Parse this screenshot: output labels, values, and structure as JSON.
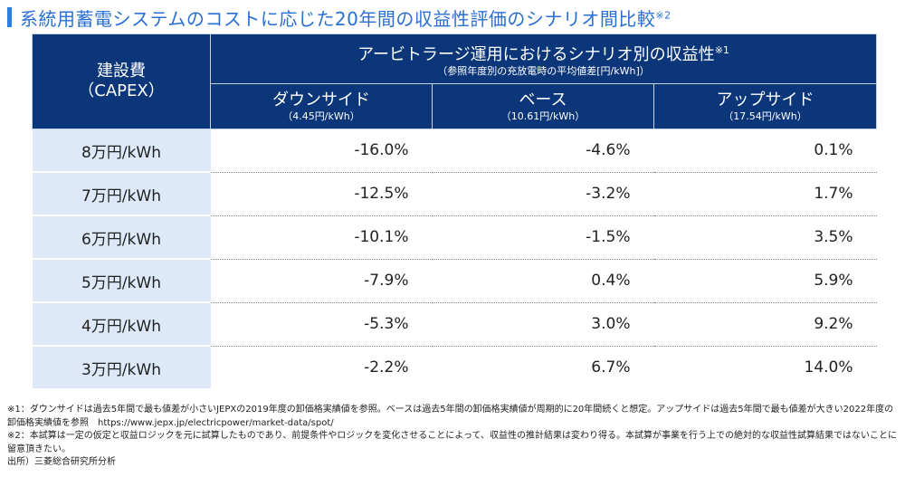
{
  "title": "系統用蓄電システムのコストに応じた20年間の収益性評価のシナリオ間比較",
  "title_note": "※2",
  "accent_color": "#0b3679",
  "header": {
    "capex_label": "建設費",
    "capex_sub": "（CAPEX）",
    "group_label": "アービトラージ運用におけるシナリオ別の収益性",
    "group_note": "※1",
    "group_sub": "（参照年度別の充放電時の平均値差[円/kWh]）",
    "scenarios": [
      {
        "name": "ダウンサイド",
        "sub": "（4.45円/kWh）"
      },
      {
        "name": "ベース",
        "sub": "（10.61円/kWh）"
      },
      {
        "name": "アップサイド",
        "sub": "（17.54円/kWh）"
      }
    ]
  },
  "rows": [
    {
      "capex": "8万円/kWh",
      "values": [
        "-16.0%",
        "-4.6%",
        "0.1%"
      ]
    },
    {
      "capex": "7万円/kWh",
      "values": [
        "-12.5%",
        "-3.2%",
        "1.7%"
      ]
    },
    {
      "capex": "6万円/kWh",
      "values": [
        "-10.1%",
        "-1.5%",
        "3.5%"
      ]
    },
    {
      "capex": "5万円/kWh",
      "values": [
        "-7.9%",
        "0.4%",
        "5.9%"
      ]
    },
    {
      "capex": "4万円/kWh",
      "values": [
        "-5.3%",
        "3.0%",
        "9.2%"
      ]
    },
    {
      "capex": "3万円/kWh",
      "values": [
        "-2.2%",
        "6.7%",
        "14.0%"
      ]
    }
  ],
  "footnotes": [
    "※1：ダウンサイドは過去5年間で最も値差が小さいJEPXの2019年度の卸価格実績値を参照。ベースは過去5年間の卸価格実績値が周期的に20年間続くと想定。アップサイドは過去5年間で最も値差が大きい2022年度の卸価格実績値を参照　https://www.jepx.jp/electricpower/market-data/spot/",
    "※2：本試算は一定の仮定と収益ロジックを元に試算したものであり、前提条件やロジックを変化させることによって、収益性の推計結果は変わり得る。本試算が事業を行う上での絶対的な収益性試算結果ではないことに留意頂きたい。",
    "出所）三菱総合研究所分析"
  ]
}
